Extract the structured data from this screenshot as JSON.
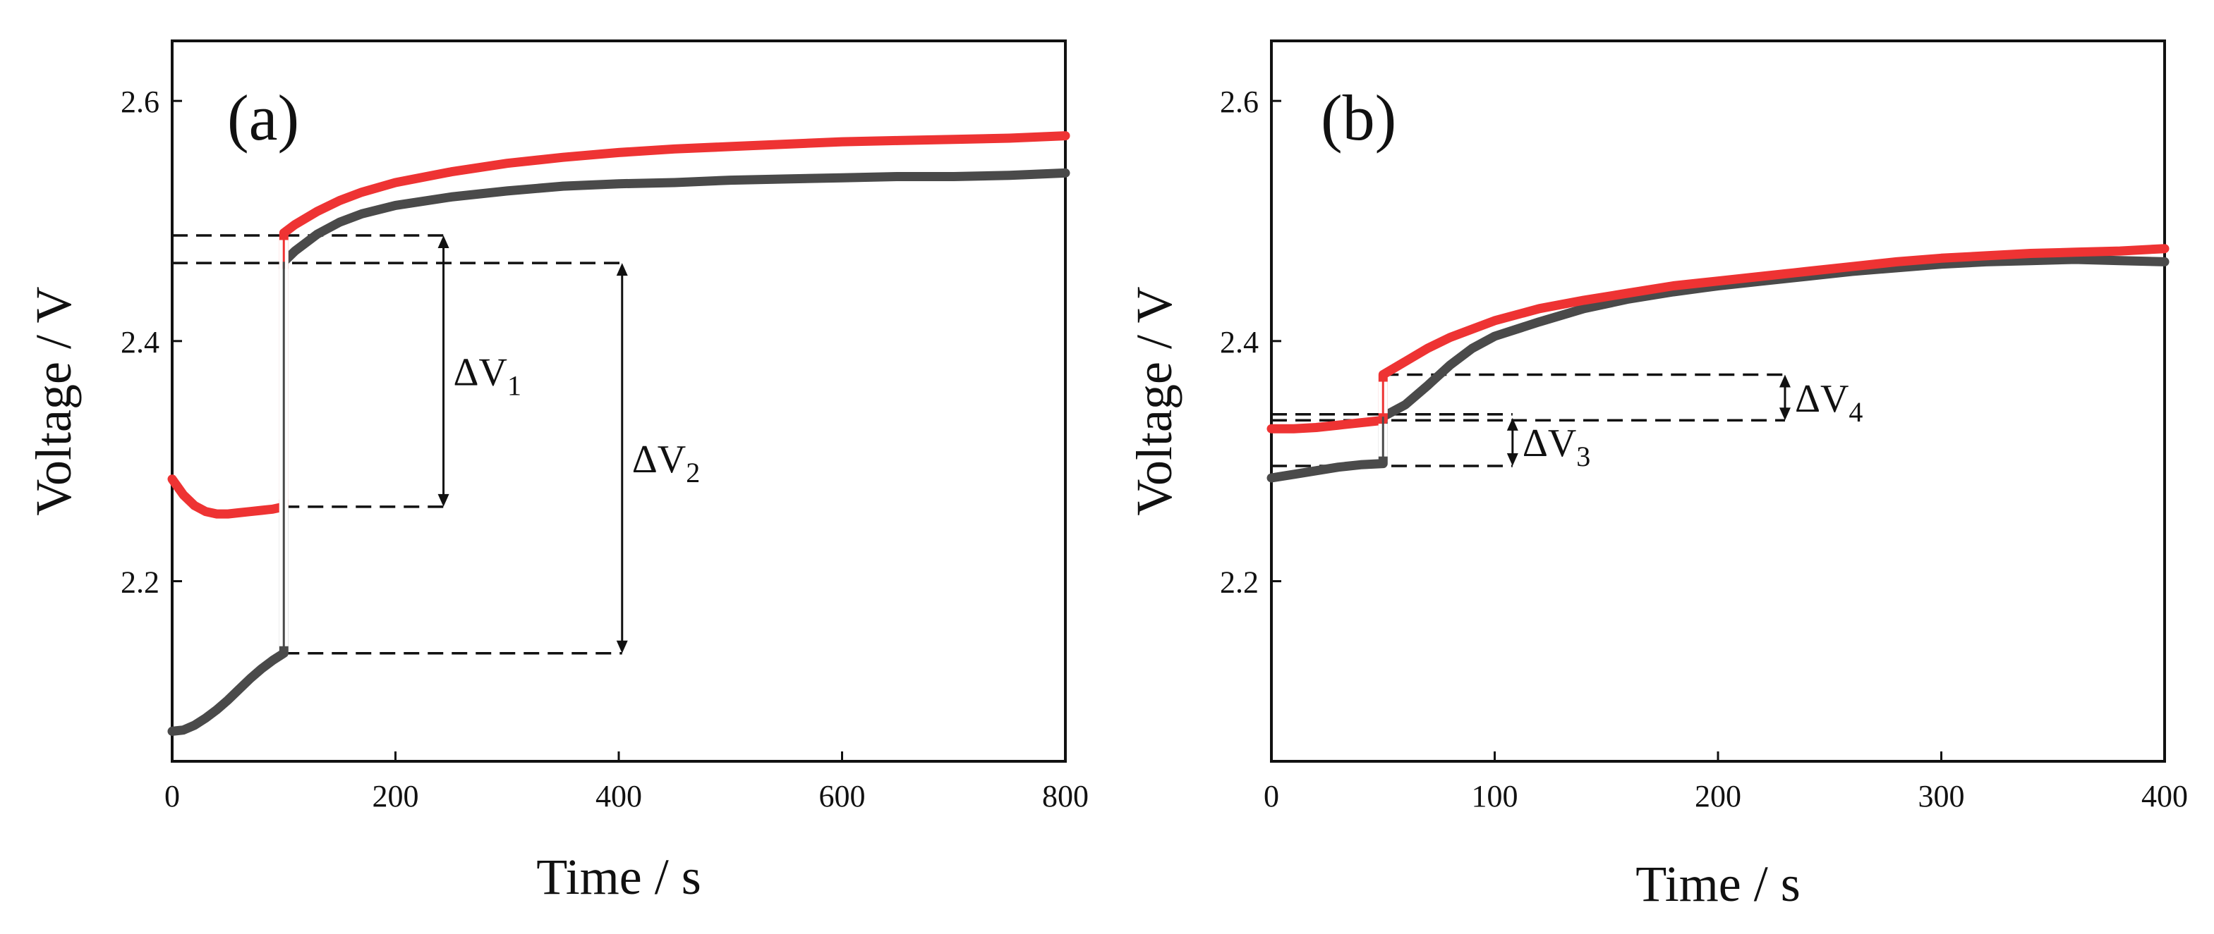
{
  "colors": {
    "series_red": "#ee3333",
    "series_gray": "#4a4a4a",
    "axis": "#111111"
  },
  "chart_data": [
    {
      "type": "line",
      "panel_label": "(a)",
      "xlabel": "Time / s",
      "ylabel": "Voltage / V",
      "xlim": [
        0,
        800
      ],
      "ylim": [
        2.05,
        2.65
      ],
      "xticks": [
        "0",
        "200",
        "400",
        "600",
        "800"
      ],
      "yticks": [
        "2.2",
        "2.4",
        "2.6"
      ],
      "grid": false,
      "series": [
        {
          "name": "red",
          "color": "#ee3333",
          "x": [
            0,
            10,
            20,
            30,
            40,
            50,
            60,
            70,
            80,
            90,
            100,
            100,
            110,
            130,
            150,
            170,
            200,
            250,
            300,
            350,
            400,
            450,
            500,
            550,
            600,
            650,
            700,
            750,
            800
          ],
          "y": [
            2.285,
            2.272,
            2.263,
            2.258,
            2.256,
            2.256,
            2.257,
            2.258,
            2.259,
            2.26,
            2.262,
            2.49,
            2.497,
            2.508,
            2.517,
            2.524,
            2.532,
            2.541,
            2.548,
            2.553,
            2.557,
            2.56,
            2.562,
            2.564,
            2.566,
            2.567,
            2.568,
            2.569,
            2.571
          ]
        },
        {
          "name": "gray",
          "color": "#4a4a4a",
          "x": [
            0,
            10,
            20,
            30,
            40,
            50,
            60,
            70,
            80,
            90,
            100,
            100,
            110,
            130,
            150,
            170,
            200,
            250,
            300,
            350,
            400,
            450,
            500,
            550,
            600,
            650,
            700,
            750,
            800
          ],
          "y": [
            2.075,
            2.076,
            2.08,
            2.086,
            2.093,
            2.101,
            2.11,
            2.119,
            2.127,
            2.134,
            2.14,
            2.466,
            2.475,
            2.489,
            2.499,
            2.506,
            2.513,
            2.52,
            2.525,
            2.529,
            2.531,
            2.532,
            2.534,
            2.535,
            2.536,
            2.537,
            2.537,
            2.538,
            2.54
          ]
        }
      ],
      "annotations": [
        {
          "label": "ΔV",
          "sub": "1",
          "x_arrow": 243,
          "y_top": 2.488,
          "y_bottom": 2.262
        },
        {
          "label": "ΔV",
          "sub": "2",
          "x_arrow": 403,
          "y_top": 2.465,
          "y_bottom": 2.14
        }
      ],
      "dashed_refs": [
        {
          "y": 2.488,
          "x_from": 100,
          "x_to": 243
        },
        {
          "y": 2.262,
          "x_from": 100,
          "x_to": 243
        },
        {
          "y": 2.465,
          "x_from": 0,
          "x_to": 403
        },
        {
          "y": 2.14,
          "x_from": 100,
          "x_to": 403
        },
        {
          "y": 2.488,
          "x_from": 0,
          "x_to": 100
        }
      ]
    },
    {
      "type": "line",
      "panel_label": "(b)",
      "xlabel": "Time / s",
      "ylabel": "Voltage / V",
      "xlim": [
        0,
        400
      ],
      "ylim": [
        2.05,
        2.65
      ],
      "xticks": [
        "0",
        "100",
        "200",
        "300",
        "400"
      ],
      "yticks": [
        "2.2",
        "2.4",
        "2.6"
      ],
      "grid": false,
      "series": [
        {
          "name": "red",
          "color": "#ee3333",
          "x": [
            0,
            10,
            20,
            30,
            40,
            50,
            50,
            60,
            70,
            80,
            90,
            100,
            120,
            140,
            160,
            180,
            200,
            220,
            240,
            260,
            280,
            300,
            320,
            340,
            360,
            380,
            400
          ],
          "y": [
            2.327,
            2.327,
            2.328,
            2.33,
            2.332,
            2.334,
            2.372,
            2.383,
            2.394,
            2.403,
            2.41,
            2.417,
            2.427,
            2.434,
            2.44,
            2.446,
            2.45,
            2.454,
            2.458,
            2.462,
            2.466,
            2.469,
            2.471,
            2.473,
            2.474,
            2.475,
            2.477
          ]
        },
        {
          "name": "gray",
          "color": "#4a4a4a",
          "x": [
            0,
            10,
            20,
            30,
            40,
            50,
            50,
            60,
            70,
            80,
            90,
            100,
            120,
            140,
            160,
            180,
            200,
            220,
            240,
            260,
            280,
            300,
            320,
            340,
            360,
            380,
            400
          ],
          "y": [
            2.286,
            2.289,
            2.292,
            2.295,
            2.297,
            2.298,
            2.337,
            2.347,
            2.363,
            2.38,
            2.394,
            2.404,
            2.416,
            2.427,
            2.435,
            2.441,
            2.446,
            2.45,
            2.454,
            2.458,
            2.461,
            2.464,
            2.466,
            2.467,
            2.468,
            2.467,
            2.466
          ]
        }
      ],
      "annotations": [
        {
          "label": "ΔV",
          "sub": "3",
          "x_arrow": 108,
          "y_top": 2.336,
          "y_bottom": 2.296
        },
        {
          "label": "ΔV",
          "sub": "4",
          "x_arrow": 230,
          "y_top": 2.372,
          "y_bottom": 2.334
        }
      ],
      "dashed_refs": [
        {
          "y": 2.372,
          "x_from": 50,
          "x_to": 230
        },
        {
          "y": 2.334,
          "x_from": 0,
          "x_to": 230
        },
        {
          "y": 2.339,
          "x_from": 0,
          "x_to": 108
        },
        {
          "y": 2.296,
          "x_from": 0,
          "x_to": 108
        }
      ]
    }
  ]
}
